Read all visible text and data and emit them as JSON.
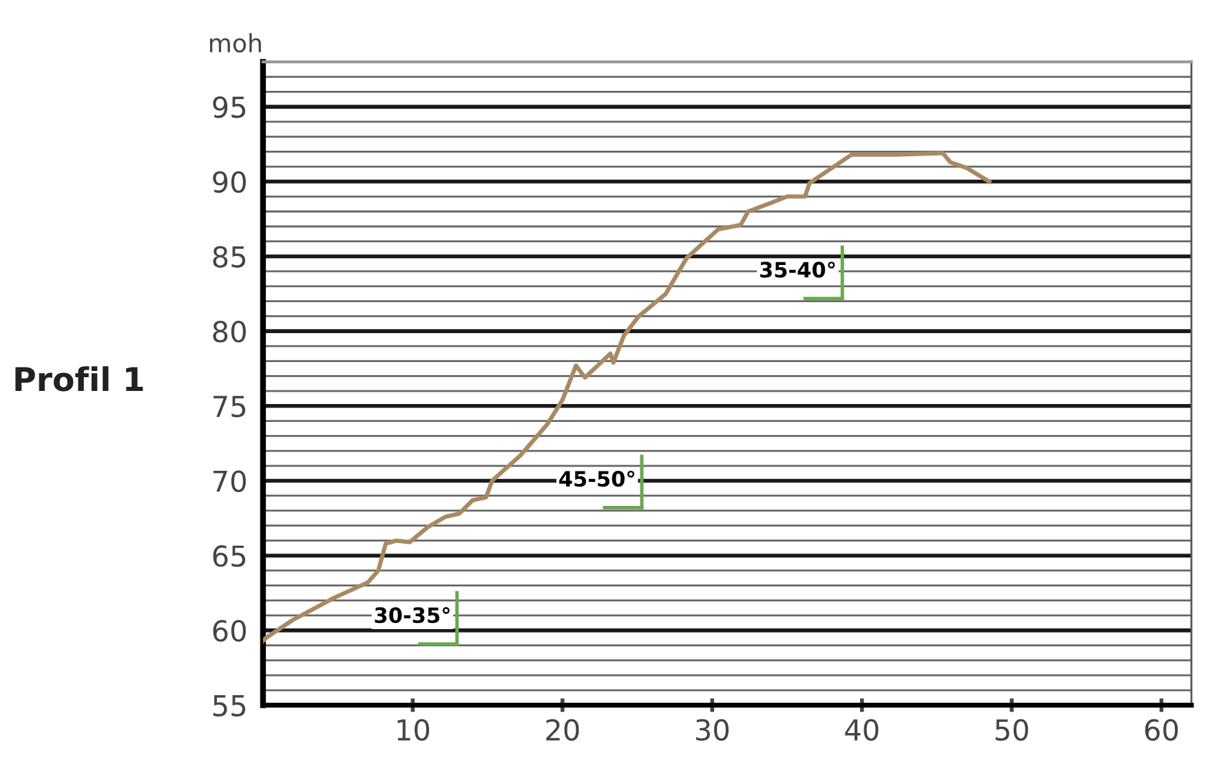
{
  "chart_data": {
    "type": "line",
    "title": "Profil 1",
    "ylabel": "moh",
    "x": [
      0,
      0.2,
      2.0,
      4.8,
      7.0,
      7.7,
      8.2,
      8.9,
      9.8,
      11,
      12.2,
      13.1,
      14.0,
      14.9,
      15.3,
      17.2,
      19.0,
      20.0,
      20.9,
      21.5,
      23.2,
      23.4,
      24.1,
      25.1,
      26.9,
      28.3,
      30.4,
      31.9,
      32.4,
      34.0,
      35.0,
      36.2,
      36.5,
      39.3,
      42.3,
      45.4,
      45.9,
      47.0,
      48.5
    ],
    "series": [
      {
        "color": "#a88a62",
        "values": [
          59.3,
          59.5,
          60.7,
          62.2,
          63.2,
          64,
          65.8,
          66,
          65.9,
          66.9,
          67.6,
          67.8,
          68.7,
          68.9,
          70,
          71.7,
          73.8,
          75.4,
          77.7,
          76.9,
          78.5,
          77.9,
          79.7,
          81,
          82.5,
          84.9,
          86.8,
          87.1,
          88.0,
          88.6,
          89,
          89,
          89.9,
          91.8,
          91.8,
          91.9,
          91.3,
          90.9,
          90.0
        ]
      }
    ],
    "xlim": [
      0,
      62
    ],
    "xticks": [
      10,
      20,
      30,
      40,
      50,
      60
    ],
    "ylim": [
      55,
      98
    ],
    "yticks": [
      55,
      {
        "value": 56,
        "label": null
      },
      {
        "value": 57,
        "label": null
      },
      {
        "value": 58,
        "label": null
      },
      {
        "value": 59,
        "label": null
      },
      60,
      {
        "value": 61,
        "label": null
      },
      {
        "value": 62,
        "label": null
      },
      {
        "value": 63,
        "label": null
      },
      {
        "value": 64,
        "label": null
      },
      65,
      {
        "value": 66,
        "label": null
      },
      {
        "value": 67,
        "label": null
      },
      {
        "value": 68,
        "label": null
      },
      {
        "value": 69,
        "label": null
      },
      70,
      {
        "value": 71,
        "label": null
      },
      {
        "value": 72,
        "label": null
      },
      {
        "value": 73,
        "label": null
      },
      {
        "value": 74,
        "label": null
      },
      75,
      {
        "value": 76,
        "label": null
      },
      {
        "value": 77,
        "label": null
      },
      {
        "value": 78,
        "label": null
      },
      {
        "value": 79,
        "label": null
      },
      80,
      {
        "value": 81,
        "label": null
      },
      {
        "value": 82,
        "label": null
      },
      {
        "value": 83,
        "label": null
      },
      {
        "value": 84,
        "label": null
      },
      85,
      {
        "value": 86,
        "label": null
      },
      {
        "value": 87,
        "label": null
      },
      {
        "value": 88,
        "label": null
      },
      {
        "value": 89,
        "label": null
      },
      90,
      {
        "value": 91,
        "label": null
      },
      {
        "value": 92,
        "label": null
      },
      {
        "value": 93,
        "label": null
      },
      {
        "value": 94,
        "label": null
      },
      95,
      {
        "value": 96,
        "label": null
      },
      {
        "value": 97,
        "label": null
      }
    ],
    "grid": "y",
    "legend": false,
    "marker": "none",
    "line_style": "solid",
    "annotations": [
      "30-35°",
      "45-50°",
      "35-40°"
    ]
  }
}
